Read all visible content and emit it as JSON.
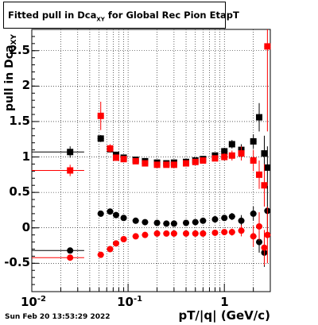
{
  "title": {
    "prefix": "Fitted pull in Dca",
    "sub": "XY",
    "suffix": " for Global Rec Pion EtapT"
  },
  "ylabel": {
    "main": "pull in Dca",
    "sub": "XY"
  },
  "xlabel": "pT/|q| (GeV/c)",
  "datestamp": "Sun Feb 20 13:53:29 2022",
  "yticks": [
    "-0.5",
    "0",
    "0.5",
    "1",
    "1.5",
    "2",
    "2.5"
  ],
  "xticks": [
    {
      "base": "10",
      "exp": "-2"
    },
    {
      "base": "10",
      "exp": "-1"
    },
    {
      "base": "1",
      "exp": ""
    }
  ],
  "chart_data": {
    "type": "scatter",
    "xlabel": "pT/|q| (GeV/c)",
    "ylabel": "pull in Dca_XY",
    "xscale": "log",
    "xlim": [
      0.01,
      3.0
    ],
    "ylim": [
      -0.9,
      2.8
    ],
    "grid": true,
    "legend": "none",
    "series": [
      {
        "color": "#000000",
        "marker": "square",
        "points": [
          {
            "x": 0.025,
            "y": 1.07,
            "xerr": [
              0.015,
              0.01
            ],
            "yerr": 0.08
          },
          {
            "x": 0.052,
            "y": 1.26,
            "yerr": 0.05
          },
          {
            "x": 0.065,
            "y": 1.11,
            "yerr": 0.04
          },
          {
            "x": 0.075,
            "y": 1.03,
            "yerr": 0.03
          },
          {
            "x": 0.09,
            "y": 0.99,
            "yerr": 0.02
          },
          {
            "x": 0.12,
            "y": 0.96,
            "yerr": 0.02
          },
          {
            "x": 0.15,
            "y": 0.94,
            "yerr": 0.02
          },
          {
            "x": 0.2,
            "y": 0.92,
            "yerr": 0.02
          },
          {
            "x": 0.25,
            "y": 0.91,
            "yerr": 0.02
          },
          {
            "x": 0.3,
            "y": 0.92,
            "yerr": 0.02
          },
          {
            "x": 0.4,
            "y": 0.93,
            "yerr": 0.02
          },
          {
            "x": 0.5,
            "y": 0.95,
            "yerr": 0.03
          },
          {
            "x": 0.6,
            "y": 0.97,
            "yerr": 0.03
          },
          {
            "x": 0.8,
            "y": 1.02,
            "yerr": 0.04
          },
          {
            "x": 1.0,
            "y": 1.08,
            "yerr": 0.05
          },
          {
            "x": 1.2,
            "y": 1.18,
            "yerr": 0.06
          },
          {
            "x": 1.5,
            "y": 1.1,
            "yerr": 0.08
          },
          {
            "x": 2.0,
            "y": 1.22,
            "yerr": 0.1
          },
          {
            "x": 2.3,
            "y": 1.56,
            "yerr": 0.2
          },
          {
            "x": 2.6,
            "y": 1.05,
            "yerr": 0.25
          },
          {
            "x": 2.8,
            "y": 0.85,
            "yerr": 0.3
          }
        ]
      },
      {
        "color": "#ff0000",
        "marker": "square",
        "points": [
          {
            "x": 0.025,
            "y": 0.81,
            "xerr": [
              0.015,
              0.01
            ],
            "yerr": 0.08
          },
          {
            "x": 0.052,
            "y": 1.58,
            "yerr": 0.2
          },
          {
            "x": 0.065,
            "y": 1.12,
            "yerr": 0.06
          },
          {
            "x": 0.075,
            "y": 0.99,
            "yerr": 0.04
          },
          {
            "x": 0.09,
            "y": 0.97,
            "yerr": 0.03
          },
          {
            "x": 0.12,
            "y": 0.94,
            "yerr": 0.02
          },
          {
            "x": 0.15,
            "y": 0.91,
            "yerr": 0.02
          },
          {
            "x": 0.2,
            "y": 0.89,
            "yerr": 0.02
          },
          {
            "x": 0.25,
            "y": 0.89,
            "yerr": 0.02
          },
          {
            "x": 0.3,
            "y": 0.89,
            "yerr": 0.02
          },
          {
            "x": 0.4,
            "y": 0.91,
            "yerr": 0.02
          },
          {
            "x": 0.5,
            "y": 0.93,
            "yerr": 0.03
          },
          {
            "x": 0.6,
            "y": 0.95,
            "yerr": 0.03
          },
          {
            "x": 0.8,
            "y": 0.98,
            "yerr": 0.04
          },
          {
            "x": 1.0,
            "y": 1.0,
            "yerr": 0.05
          },
          {
            "x": 1.2,
            "y": 1.02,
            "yerr": 0.07
          },
          {
            "x": 1.5,
            "y": 1.05,
            "yerr": 0.1
          },
          {
            "x": 2.0,
            "y": 0.95,
            "yerr": 0.15
          },
          {
            "x": 2.3,
            "y": 0.75,
            "yerr": 0.2
          },
          {
            "x": 2.6,
            "y": 0.6,
            "yerr": 0.3
          },
          {
            "x": 2.8,
            "y": 2.56,
            "yerr": 1.2
          }
        ]
      },
      {
        "color": "#000000",
        "marker": "circle",
        "points": [
          {
            "x": 0.025,
            "y": -0.32,
            "xerr": [
              0.015,
              0.01
            ],
            "yerr": 0.04
          },
          {
            "x": 0.052,
            "y": 0.2,
            "yerr": 0.04
          },
          {
            "x": 0.065,
            "y": 0.23,
            "yerr": 0.03
          },
          {
            "x": 0.075,
            "y": 0.18,
            "yerr": 0.02
          },
          {
            "x": 0.09,
            "y": 0.14,
            "yerr": 0.02
          },
          {
            "x": 0.12,
            "y": 0.1,
            "yerr": 0.02
          },
          {
            "x": 0.15,
            "y": 0.08,
            "yerr": 0.02
          },
          {
            "x": 0.2,
            "y": 0.07,
            "yerr": 0.02
          },
          {
            "x": 0.25,
            "y": 0.06,
            "yerr": 0.02
          },
          {
            "x": 0.3,
            "y": 0.06,
            "yerr": 0.02
          },
          {
            "x": 0.4,
            "y": 0.07,
            "yerr": 0.02
          },
          {
            "x": 0.5,
            "y": 0.08,
            "yerr": 0.02
          },
          {
            "x": 0.6,
            "y": 0.1,
            "yerr": 0.03
          },
          {
            "x": 0.8,
            "y": 0.12,
            "yerr": 0.03
          },
          {
            "x": 1.0,
            "y": 0.14,
            "yerr": 0.04
          },
          {
            "x": 1.2,
            "y": 0.16,
            "yerr": 0.05
          },
          {
            "x": 1.5,
            "y": 0.1,
            "yerr": 0.08
          },
          {
            "x": 2.0,
            "y": 0.2,
            "yerr": 0.1
          },
          {
            "x": 2.3,
            "y": -0.2,
            "yerr": 0.15
          },
          {
            "x": 2.6,
            "y": -0.35,
            "yerr": 0.2
          },
          {
            "x": 2.8,
            "y": 0.24,
            "yerr": 0.35
          }
        ]
      },
      {
        "color": "#ff0000",
        "marker": "circle",
        "points": [
          {
            "x": 0.025,
            "y": -0.42,
            "xerr": [
              0.015,
              0.01
            ],
            "yerr": 0.04
          },
          {
            "x": 0.052,
            "y": -0.38,
            "yerr": 0.04
          },
          {
            "x": 0.065,
            "y": -0.3,
            "yerr": 0.03
          },
          {
            "x": 0.075,
            "y": -0.22,
            "yerr": 0.02
          },
          {
            "x": 0.09,
            "y": -0.16,
            "yerr": 0.02
          },
          {
            "x": 0.12,
            "y": -0.12,
            "yerr": 0.02
          },
          {
            "x": 0.15,
            "y": -0.1,
            "yerr": 0.02
          },
          {
            "x": 0.2,
            "y": -0.08,
            "yerr": 0.02
          },
          {
            "x": 0.25,
            "y": -0.08,
            "yerr": 0.02
          },
          {
            "x": 0.3,
            "y": -0.08,
            "yerr": 0.02
          },
          {
            "x": 0.4,
            "y": -0.08,
            "yerr": 0.02
          },
          {
            "x": 0.5,
            "y": -0.08,
            "yerr": 0.02
          },
          {
            "x": 0.6,
            "y": -0.08,
            "yerr": 0.03
          },
          {
            "x": 0.8,
            "y": -0.07,
            "yerr": 0.03
          },
          {
            "x": 1.0,
            "y": -0.06,
            "yerr": 0.04
          },
          {
            "x": 1.2,
            "y": -0.06,
            "yerr": 0.05
          },
          {
            "x": 1.5,
            "y": -0.04,
            "yerr": 0.08
          },
          {
            "x": 2.0,
            "y": -0.12,
            "yerr": 0.15
          },
          {
            "x": 2.3,
            "y": 0.02,
            "yerr": 0.2
          },
          {
            "x": 2.6,
            "y": -0.28,
            "yerr": 0.25
          },
          {
            "x": 2.8,
            "y": -0.1,
            "yerr": 0.4
          }
        ]
      }
    ]
  }
}
